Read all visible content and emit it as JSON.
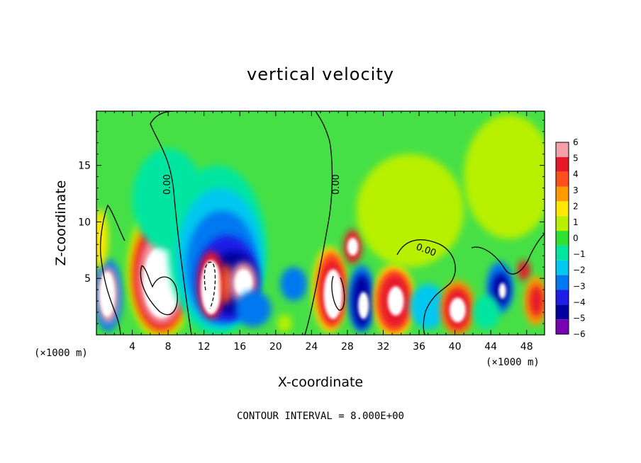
{
  "chart_data": {
    "type": "heatmap",
    "title": "vertical velocity",
    "xlabel": "X-coordinate",
    "ylabel": "Z-coordinate",
    "x_unit": "(×1000 m)",
    "x_unit_right": "(×1000 m)",
    "xlim": [
      0,
      50
    ],
    "ylim": [
      0,
      19.8
    ],
    "x_ticks": [
      4,
      8,
      12,
      16,
      20,
      24,
      28,
      32,
      36,
      40,
      44,
      48
    ],
    "x_tick_labels": [
      "4",
      "8",
      "12",
      "16",
      "20",
      "24",
      "28",
      "32",
      "36",
      "40",
      "44",
      "48"
    ],
    "y_ticks": [
      5,
      10,
      15
    ],
    "y_tick_labels": [
      "5",
      "10",
      "15"
    ],
    "colorbar": {
      "levels": [
        6,
        5,
        4,
        3,
        2,
        1,
        0,
        -1,
        -2,
        -3,
        -4,
        -5,
        -6
      ],
      "labels": [
        "6",
        "5",
        "4",
        "3",
        "2",
        "1",
        "0",
        "−1",
        "−2",
        "−3",
        "−4",
        "−5",
        "−6"
      ],
      "colors": [
        "#f4a0a8",
        "#e6182a",
        "#ff4f1c",
        "#ff9a00",
        "#ffe800",
        "#b8f000",
        "#32e032",
        "#00e6a0",
        "#00c8f0",
        "#0078f0",
        "#1e1ee6",
        "#0000a0",
        "#7a00b4"
      ],
      "background_color": "#46e046"
    },
    "contour_labels": [
      "0.00",
      "0.00",
      "0.00"
    ],
    "footer": "CONTOUR INTERVAL = 8.000E+00",
    "cells": [
      {
        "x": 1.3,
        "z": 3.5,
        "rx": 1.6,
        "rz": 3.2,
        "w": -3
      },
      {
        "x": 1.3,
        "z": 3.5,
        "rx": 1.15,
        "rz": 2.5,
        "w": 6
      },
      {
        "x": 1.2,
        "z": 3.6,
        "rx": 0.85,
        "rz": 2.0,
        "w": 9
      },
      {
        "x": 0.4,
        "z": 8.5,
        "rx": 0.9,
        "rz": 2.6,
        "w": 2
      },
      {
        "x": 7.2,
        "z": 5.6,
        "rx": 3.8,
        "rz": 6.1,
        "w": 1
      },
      {
        "x": 7.2,
        "z": 5.4,
        "rx": 3.4,
        "rz": 5.4,
        "w": 3
      },
      {
        "x": 7.2,
        "z": 5.2,
        "rx": 3.0,
        "rz": 4.7,
        "w": 5
      },
      {
        "x": 7.3,
        "z": 5.0,
        "rx": 2.6,
        "rz": 4.0,
        "w": 6
      },
      {
        "x": 7.3,
        "z": 4.7,
        "rx": 2.1,
        "rz": 3.2,
        "w": 9
      },
      {
        "x": 8.0,
        "z": 12.0,
        "rx": 4.0,
        "rz": 4.5,
        "w": -1
      },
      {
        "x": 13.5,
        "z": 7.5,
        "rx": 5.5,
        "rz": 7.5,
        "w": -1
      },
      {
        "x": 13.8,
        "z": 6.8,
        "rx": 4.8,
        "rz": 6.2,
        "w": -2
      },
      {
        "x": 14.0,
        "z": 6.0,
        "rx": 4.0,
        "rz": 5.0,
        "w": -3
      },
      {
        "x": 14.6,
        "z": 5.0,
        "rx": 3.4,
        "rz": 3.8,
        "w": -4
      },
      {
        "x": 15.3,
        "z": 4.6,
        "rx": 2.8,
        "rz": 2.8,
        "w": -5
      },
      {
        "x": 12.8,
        "z": 4.4,
        "rx": 1.5,
        "rz": 3.0,
        "w": 5
      },
      {
        "x": 12.8,
        "z": 4.2,
        "rx": 1.15,
        "rz": 2.4,
        "w": 9
      },
      {
        "x": 14.5,
        "z": 4.5,
        "rx": 0.6,
        "rz": 1.8,
        "w": 4
      },
      {
        "x": 16.4,
        "z": 4.6,
        "rx": 1.5,
        "rz": 1.8,
        "w": 6
      },
      {
        "x": 16.4,
        "z": 4.6,
        "rx": 1.0,
        "rz": 1.2,
        "w": 9
      },
      {
        "x": 17.5,
        "z": 2.3,
        "rx": 2.0,
        "rz": 1.6,
        "w": -3
      },
      {
        "x": 22.0,
        "z": 4.5,
        "rx": 1.5,
        "rz": 1.5,
        "w": -3
      },
      {
        "x": 21.0,
        "z": 1.0,
        "rx": 0.8,
        "rz": 0.8,
        "w": 1
      },
      {
        "x": 26.0,
        "z": 4.0,
        "rx": 1.9,
        "rz": 3.8,
        "w": 2
      },
      {
        "x": 26.2,
        "z": 4.0,
        "rx": 1.6,
        "rz": 3.4,
        "w": 4
      },
      {
        "x": 26.3,
        "z": 3.8,
        "rx": 1.35,
        "rz": 2.8,
        "w": 5
      },
      {
        "x": 26.4,
        "z": 3.6,
        "rx": 1.05,
        "rz": 2.2,
        "w": 9
      },
      {
        "x": 28.6,
        "z": 7.8,
        "rx": 1.0,
        "rz": 1.5,
        "w": 5
      },
      {
        "x": 28.6,
        "z": 7.8,
        "rx": 0.6,
        "rz": 0.8,
        "w": 9
      },
      {
        "x": 29.6,
        "z": 3.2,
        "rx": 1.5,
        "rz": 3.0,
        "w": -3
      },
      {
        "x": 29.6,
        "z": 3.0,
        "rx": 1.1,
        "rz": 2.4,
        "w": -5
      },
      {
        "x": 29.8,
        "z": 2.6,
        "rx": 0.6,
        "rz": 1.2,
        "w": 9
      },
      {
        "x": 33.2,
        "z": 3.0,
        "rx": 2.3,
        "rz": 3.3,
        "w": 2
      },
      {
        "x": 33.2,
        "z": 3.0,
        "rx": 2.0,
        "rz": 2.8,
        "w": 4
      },
      {
        "x": 33.3,
        "z": 3.0,
        "rx": 1.6,
        "rz": 2.3,
        "w": 5
      },
      {
        "x": 33.4,
        "z": 3.0,
        "rx": 0.9,
        "rz": 1.3,
        "w": 9
      },
      {
        "x": 37.0,
        "z": 2.5,
        "rx": 2.0,
        "rz": 2.0,
        "w": -2
      },
      {
        "x": 40.3,
        "z": 2.4,
        "rx": 1.9,
        "rz": 2.4,
        "w": 3
      },
      {
        "x": 40.3,
        "z": 2.3,
        "rx": 1.5,
        "rz": 1.9,
        "w": 5
      },
      {
        "x": 40.3,
        "z": 2.2,
        "rx": 0.9,
        "rz": 1.1,
        "w": 9
      },
      {
        "x": 45.0,
        "z": 4.2,
        "rx": 1.5,
        "rz": 2.3,
        "w": -3
      },
      {
        "x": 45.1,
        "z": 4.0,
        "rx": 1.0,
        "rz": 1.5,
        "w": -5
      },
      {
        "x": 45.3,
        "z": 3.9,
        "rx": 0.4,
        "rz": 0.7,
        "w": 9
      },
      {
        "x": 47.7,
        "z": 5.7,
        "rx": 0.7,
        "rz": 0.9,
        "w": 5
      },
      {
        "x": 49.0,
        "z": 3.0,
        "rx": 1.3,
        "rz": 2.2,
        "w": 3
      },
      {
        "x": 49.1,
        "z": 3.0,
        "rx": 0.8,
        "rz": 1.4,
        "w": 5
      },
      {
        "x": 43.5,
        "z": 2.0,
        "rx": 1.5,
        "rz": 1.5,
        "w": -1
      },
      {
        "x": 35.0,
        "z": 11.0,
        "rx": 6.0,
        "rz": 5.0,
        "w": 1
      },
      {
        "x": 46.0,
        "z": 14.0,
        "rx": 5.0,
        "rz": 5.5,
        "w": 1
      }
    ]
  }
}
